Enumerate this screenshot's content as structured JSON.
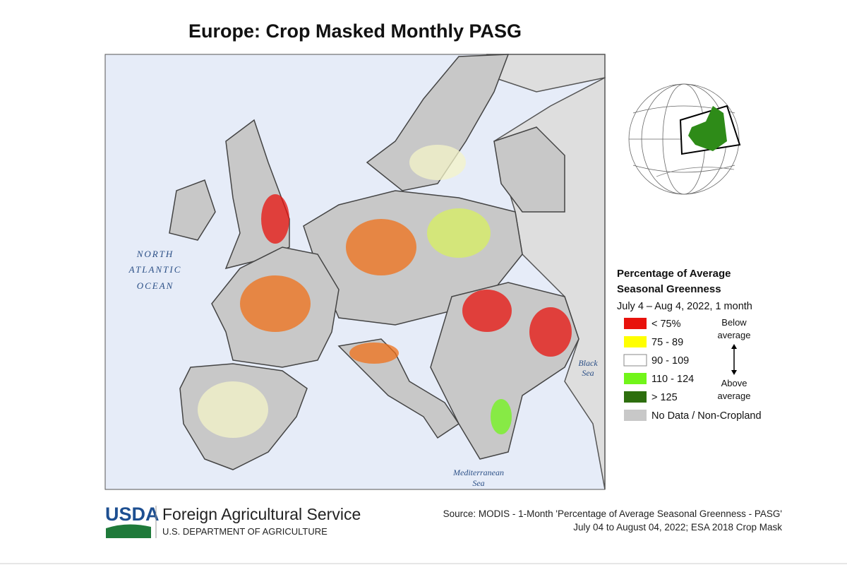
{
  "title": "Europe: Crop Masked Monthly PASG",
  "map_labels": {
    "ocean": [
      "NORTH",
      "ATLANTIC",
      "OCEAN"
    ],
    "black_sea": [
      "Black",
      "Sea"
    ],
    "mediterranean": [
      "Mediterranean",
      "Sea"
    ]
  },
  "legend": {
    "title": [
      "Percentage of Average",
      "Seasonal Greenness"
    ],
    "subtitle": "July 4 – Aug 4, 2022, 1 month",
    "items": [
      {
        "label": "< 75%",
        "color": "#e8120c"
      },
      {
        "label": "75 - 89",
        "color": "#ffff00"
      },
      {
        "label": "90 - 109",
        "color": "#ffffff"
      },
      {
        "label": "110 - 124",
        "color": "#72f51a"
      },
      {
        "label": "> 125",
        "color": "#2d6e0e"
      },
      {
        "label": "No Data / Non-Cropland",
        "color": "#c8c8c8"
      }
    ],
    "below": [
      "Below",
      "average"
    ],
    "above": [
      "Above",
      "average"
    ]
  },
  "footer": {
    "logo": "USDA",
    "agency": "Foreign Agricultural Service",
    "department": "U.S. DEPARTMENT OF AGRICULTURE",
    "source": [
      "Source: MODIS - 1-Month 'Percentage of Average Seasonal Greenness - PASG'",
      "July 04 to August 04, 2022; ESA 2018 Crop Mask"
    ]
  }
}
